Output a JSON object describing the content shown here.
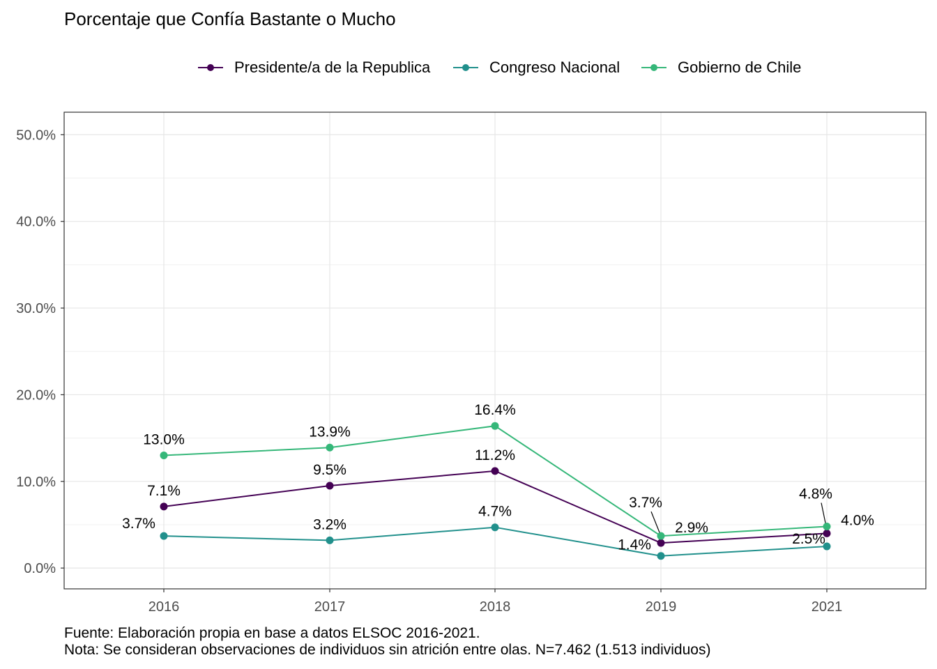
{
  "chart_data": {
    "type": "line",
    "title": "Porcentaje que Confía Bastante o Mucho",
    "xlabel": "",
    "ylabel": "",
    "categories": [
      "2016",
      "2017",
      "2018",
      "2019",
      "2021"
    ],
    "y_ticks": [
      "0.0%",
      "10.0%",
      "20.0%",
      "30.0%",
      "40.0%",
      "50.0%"
    ],
    "ylim": [
      -2.4,
      52.6
    ],
    "y_tick_values": [
      0,
      10,
      20,
      30,
      40,
      50
    ],
    "grid": true,
    "legend_position": "top",
    "series": [
      {
        "name": "Presidente/a de la Republica",
        "color": "#440154",
        "values": [
          7.1,
          9.5,
          11.2,
          2.9,
          4.0
        ],
        "labels": [
          "7.1%",
          "9.5%",
          "11.2%",
          "2.9%",
          "4.0%"
        ]
      },
      {
        "name": "Congreso Nacional",
        "color": "#21908C",
        "values": [
          3.7,
          3.2,
          4.7,
          1.4,
          2.5
        ],
        "labels": [
          "3.7%",
          "3.2%",
          "4.7%",
          "1.4%",
          "2.5%"
        ]
      },
      {
        "name": "Gobierno de Chile",
        "color": "#35B779",
        "values": [
          13.0,
          13.9,
          16.4,
          3.7,
          4.8
        ],
        "labels": [
          "13.0%",
          "13.9%",
          "16.4%",
          "3.7%",
          "4.8%"
        ]
      }
    ]
  },
  "caption": {
    "source": "Fuente: Elaboración propia en base a datos ELSOC 2016-2021.",
    "note": "Nota: Se consideran observaciones de individuos sin atrición entre olas. N=7.462 (1.513 individuos)"
  }
}
